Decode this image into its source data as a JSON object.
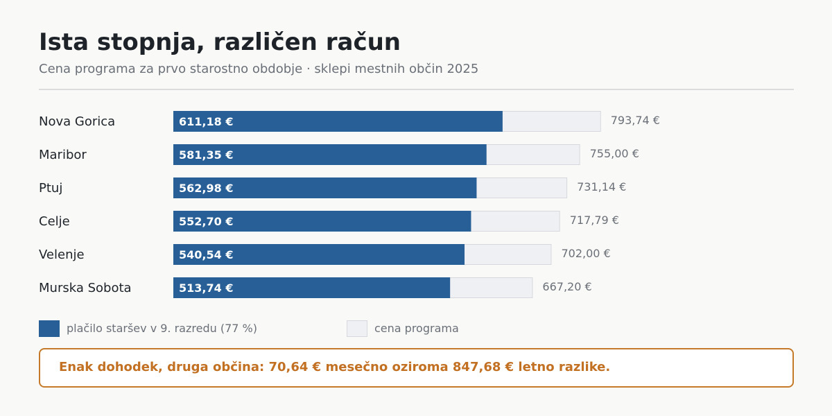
{
  "title": "Ista stopnja, različen račun",
  "subtitle": "Cena programa za prvo starostno obdobje · sklepi mestnih občin 2025",
  "colors": {
    "paid": "#285f96",
    "price": "#eff0f3",
    "price_border": "#d6d8dd",
    "accent": "#c57a2a"
  },
  "chart_data": {
    "type": "bar",
    "orientation": "horizontal",
    "categories": [
      "Nova Gorica",
      "Maribor",
      "Ptuj",
      "Celje",
      "Velenje",
      "Murska Sobota"
    ],
    "series": [
      {
        "name": "plačilo staršev v 9. razredu (77 %)",
        "values": [
          611.18,
          581.35,
          562.98,
          552.7,
          540.54,
          513.74
        ],
        "labels": [
          "611,18 €",
          "581,35 €",
          "562,98 €",
          "552,70 €",
          "540,54 €",
          "513,74 €"
        ]
      },
      {
        "name": "cena programa",
        "values": [
          793.74,
          755.0,
          731.14,
          717.79,
          702.0,
          667.2
        ],
        "labels": [
          "793,74 €",
          "755,00 €",
          "731,14 €",
          "717,79 €",
          "702,00 €",
          "667,20 €"
        ]
      }
    ],
    "xlim": [
      0,
      1000
    ],
    "legend_position": "bottom-left",
    "grid": false
  },
  "callout": "Enak dohodek, druga občina: 70,64 € mesečno oziroma 847,68 € letno razlike."
}
